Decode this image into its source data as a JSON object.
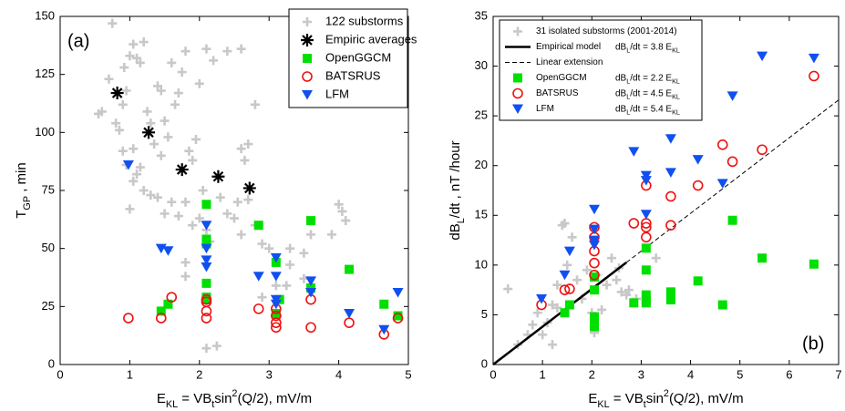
{
  "chart_data": [
    {
      "type": "scatter",
      "panel_label": "(a)",
      "legend": "upper right",
      "xlabel": [
        {
          "t": "E"
        },
        {
          "t": "KL",
          "s": "sub"
        },
        {
          "t": " = VB"
        },
        {
          "t": "t",
          "s": "sub"
        },
        {
          "t": "sin"
        },
        {
          "t": "2",
          "s": "sup"
        },
        {
          "t": "(Q/2),  mV/m"
        }
      ],
      "ylabel": [
        {
          "t": "T"
        },
        {
          "t": "GP",
          "s": "sub"
        },
        {
          "t": " ,  min"
        }
      ],
      "xlim": [
        0,
        5
      ],
      "xticks": [
        0,
        1,
        2,
        3,
        4,
        5
      ],
      "ylim": [
        0,
        150
      ],
      "yticks": [
        0,
        25,
        50,
        75,
        100,
        125,
        150
      ],
      "series": [
        {
          "name": "122 substorms",
          "color": "#c8c8c8",
          "marker": "plus",
          "x": [
            0.55,
            0.6,
            0.7,
            0.75,
            0.8,
            0.85,
            0.9,
            0.92,
            0.95,
            1.0,
            1.05,
            1.1,
            1.15,
            1.2,
            1.25,
            1.3,
            1.35,
            1.4,
            1.45,
            1.5,
            1.55,
            1.6,
            1.65,
            1.7,
            1.75,
            1.8,
            1.85,
            1.9,
            1.95,
            2.0,
            2.1,
            2.2,
            2.4,
            2.6,
            2.8,
            2.7,
            2.6,
            2.65,
            0.95,
            1.05,
            1.1,
            1.2,
            1.3,
            1.4,
            1.5,
            1.6,
            1.7,
            1.8,
            1.9,
            2.0,
            2.05,
            2.1,
            2.15,
            2.3,
            2.4,
            2.5,
            2.55,
            2.6,
            2.7,
            2.8,
            2.9,
            2.9,
            3.0,
            3.3,
            3.5,
            3.6,
            3.9,
            4.0,
            4.1,
            4.05,
            2.1,
            3.1,
            3.3,
            1.8,
            1.8,
            1.0,
            1.05,
            0.9,
            1.15,
            1.45,
            3.25,
            3.5,
            2.25
          ],
          "values": [
            108,
            109,
            123,
            147,
            104,
            101,
            112,
            128,
            118,
            133,
            138,
            132,
            130,
            139,
            109,
            104,
            95,
            120,
            118,
            105,
            98,
            130,
            112,
            117,
            126,
            135,
            92,
            88,
            97,
            121,
            136,
            131,
            135,
            136,
            112,
            95,
            93,
            88,
            86,
            79,
            82,
            75,
            73,
            72,
            65,
            70,
            64,
            70,
            60,
            63,
            75,
            58,
            53,
            72,
            65,
            63,
            70,
            56,
            71,
            60,
            52,
            29,
            50,
            50,
            48,
            56,
            56,
            69,
            62,
            66,
            7,
            34,
            43,
            44,
            38,
            67,
            93,
            92,
            85,
            90,
            34,
            37,
            8
          ]
        },
        {
          "name": "Empiric averages",
          "color": "#000000",
          "marker": "asterisk",
          "x": [
            0.82,
            1.27,
            1.75,
            2.27,
            2.72
          ],
          "values": [
            117,
            100,
            84,
            81,
            76
          ]
        },
        {
          "name": "OpenGGCM",
          "color": "#00e000",
          "marker": "square",
          "x": [
            2.1,
            2.1,
            2.1,
            2.1,
            2.1,
            1.55,
            1.45,
            2.85,
            3.1,
            3.15,
            3.1,
            3.6,
            3.6,
            4.15,
            4.65,
            4.85,
            2.1
          ],
          "values": [
            69,
            54,
            35,
            28,
            29,
            26,
            23,
            60,
            44,
            28,
            22,
            62,
            33,
            41,
            26,
            21,
            52
          ]
        },
        {
          "name": "BATSRUS",
          "color": "#ee1111",
          "marker": "circle",
          "x": [
            0.98,
            1.45,
            1.6,
            2.1,
            2.1,
            2.1,
            2.1,
            2.85,
            3.1,
            3.1,
            3.1,
            3.1,
            3.6,
            3.6,
            4.15,
            4.65,
            4.85
          ],
          "values": [
            20,
            20,
            29,
            28,
            27,
            23,
            20,
            24,
            24,
            21,
            18,
            16,
            28,
            16,
            18,
            13,
            20
          ]
        },
        {
          "name": "LFM",
          "color": "#1050f0",
          "marker": "triangle",
          "x": [
            0.98,
            1.45,
            1.55,
            2.1,
            2.1,
            2.1,
            2.1,
            2.85,
            3.1,
            3.1,
            3.1,
            3.1,
            3.6,
            3.6,
            4.15,
            4.65,
            4.85
          ],
          "values": [
            86,
            50,
            49,
            60,
            50,
            45,
            42,
            38,
            46,
            38,
            28,
            26,
            36,
            31,
            22,
            15,
            31
          ]
        }
      ]
    },
    {
      "type": "scatter",
      "panel_label": "(b)",
      "legend": "upper left",
      "xlabel": [
        {
          "t": "E"
        },
        {
          "t": "KL",
          "s": "sub"
        },
        {
          "t": " = VB"
        },
        {
          "t": "t",
          "s": "sub"
        },
        {
          "t": "sin"
        },
        {
          "t": "2",
          "s": "sup"
        },
        {
          "t": "(Q/2),  mV/m"
        }
      ],
      "ylabel": [
        {
          "t": "dB"
        },
        {
          "t": "L",
          "s": "sub"
        },
        {
          "t": "/dt ,  nT /hour"
        }
      ],
      "xlim": [
        0,
        7
      ],
      "xticks": [
        0,
        1,
        2,
        3,
        4,
        5,
        6,
        7
      ],
      "ylim": [
        0,
        35
      ],
      "yticks": [
        0,
        5,
        10,
        15,
        20,
        25,
        30,
        35
      ],
      "series": [
        {
          "name": "31 isolated substorms (2001-2014)",
          "color": "#c8c8c8",
          "marker": "plus",
          "x": [
            0.3,
            0.5,
            0.8,
            0.9,
            1.0,
            1.1,
            1.2,
            1.3,
            1.4,
            1.5,
            1.6,
            1.7,
            1.8,
            1.9,
            2.0,
            2.1,
            2.2,
            2.3,
            2.4,
            2.5,
            2.6,
            2.7,
            2.9,
            3.3,
            1.2,
            0.7,
            1.3,
            1.45,
            2.05,
            2.55,
            2.75
          ],
          "values": [
            7.6,
            2,
            4,
            5.2,
            3,
            4.2,
            6,
            8,
            14,
            10,
            12.8,
            8.5,
            6.6,
            9.5,
            5.2,
            9,
            5.5,
            8,
            10.7,
            8.5,
            7.3,
            7,
            6.6,
            10.7,
            2,
            3,
            5.7,
            14.2,
            3.2,
            9.7,
            7.5
          ]
        },
        {
          "name": "Empirical model",
          "color": "#000000",
          "kind": "line",
          "dash": false,
          "formula": [
            {
              "t": "dB"
            },
            {
              "t": "L",
              "s": "sub"
            },
            {
              "t": "/dt = 3.8 E"
            },
            {
              "t": "KL",
              "s": "sub"
            }
          ],
          "x": [
            0,
            2.7
          ],
          "values": [
            0,
            10.26
          ]
        },
        {
          "name": "Linear extension",
          "color": "#000000",
          "kind": "line",
          "dash": true,
          "x": [
            2.7,
            7
          ],
          "values": [
            10.26,
            26.6
          ]
        },
        {
          "name": "OpenGGCM",
          "color": "#00e000",
          "marker": "square",
          "formula": [
            {
              "t": "dB"
            },
            {
              "t": "L",
              "s": "sub"
            },
            {
              "t": "/dt = 2.2 E"
            },
            {
              "t": "KL",
              "s": "sub"
            }
          ],
          "x": [
            1.45,
            1.55,
            2.05,
            2.05,
            2.05,
            2.05,
            2.05,
            2.85,
            3.1,
            3.1,
            3.1,
            3.1,
            3.1,
            3.6,
            3.6,
            4.15,
            4.65,
            4.85,
            5.45,
            6.5
          ],
          "values": [
            5.2,
            6,
            7.5,
            4.8,
            4.3,
            3.8,
            8.8,
            6.2,
            11.7,
            9.5,
            7,
            6.5,
            6.2,
            7.3,
            6.5,
            8.4,
            6,
            14.5,
            10.7,
            10.1
          ]
        },
        {
          "name": "BATSRUS",
          "color": "#ee1111",
          "marker": "circle",
          "formula": [
            {
              "t": "dB"
            },
            {
              "t": "L",
              "s": "sub"
            },
            {
              "t": "/dt = 4.5 E"
            },
            {
              "t": "KL",
              "s": "sub"
            }
          ],
          "x": [
            0.98,
            1.45,
            1.55,
            2.05,
            2.05,
            2.05,
            2.05,
            2.05,
            2.85,
            3.1,
            3.1,
            3.1,
            3.1,
            3.6,
            3.6,
            4.15,
            4.65,
            4.85,
            5.45,
            6.5
          ],
          "values": [
            6,
            7.5,
            7.6,
            13.8,
            12.8,
            11.4,
            10.2,
            9,
            14.2,
            18,
            14.2,
            13.8,
            12.8,
            16.9,
            14,
            18,
            22.1,
            20.4,
            21.6,
            29
          ]
        },
        {
          "name": "LFM",
          "color": "#1050f0",
          "marker": "triangle",
          "formula": [
            {
              "t": "dB"
            },
            {
              "t": "L",
              "s": "sub"
            },
            {
              "t": "/dt = 5.4 E"
            },
            {
              "t": "KL",
              "s": "sub"
            }
          ],
          "x": [
            0.98,
            1.45,
            1.55,
            2.05,
            2.05,
            2.05,
            2.05,
            2.85,
            3.1,
            3.1,
            3.1,
            3.6,
            3.6,
            4.15,
            4.65,
            4.85,
            5.45,
            6.5
          ],
          "values": [
            6.6,
            9,
            11.4,
            15.6,
            13.6,
            12.5,
            12,
            21.4,
            19,
            18.5,
            15.1,
            22.7,
            19.3,
            20.6,
            18.2,
            27,
            31,
            30.8
          ]
        }
      ]
    }
  ]
}
